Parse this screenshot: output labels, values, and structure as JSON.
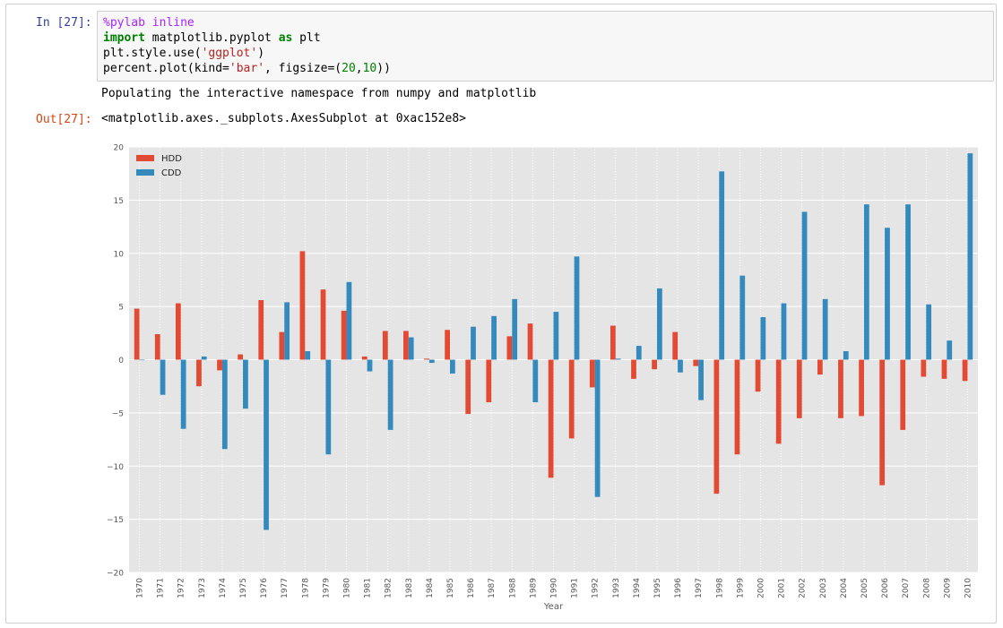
{
  "cell": {
    "in_prompt": "In [27]:",
    "out_prompt": "Out[27]:",
    "code": {
      "line1_magic": "%pylab inline",
      "line2_kw1": "import",
      "line2_mid": " matplotlib.pyplot ",
      "line2_kw2": "as",
      "line2_end": " plt",
      "line3_pre": "plt.style.use(",
      "line3_str": "'ggplot'",
      "line3_post": ")",
      "line4_pre": "percent.plot(kind=",
      "line4_str": "'bar'",
      "line4_mid": ", figsize=(",
      "line4_n1": "20",
      "line4_comma": ",",
      "line4_n2": "10",
      "line4_post": "))"
    },
    "stream_output": "Populating the interactive namespace from numpy and matplotlib",
    "output_repr": "<matplotlib.axes._subplots.AxesSubplot at 0xac152e8>"
  },
  "chart_data": {
    "type": "bar",
    "style": "ggplot",
    "xlabel": "Year",
    "ylabel": "",
    "ylim": [
      -20,
      20
    ],
    "yticks": [
      -20,
      -15,
      -10,
      -5,
      0,
      5,
      10,
      15,
      20
    ],
    "legend_position": "top-left",
    "grid": true,
    "categories": [
      "1970",
      "1971",
      "1972",
      "1973",
      "1974",
      "1975",
      "1976",
      "1977",
      "1978",
      "1979",
      "1980",
      "1981",
      "1982",
      "1983",
      "1984",
      "1985",
      "1986",
      "1987",
      "1988",
      "1989",
      "1990",
      "1991",
      "1992",
      "1993",
      "1994",
      "1995",
      "1996",
      "1997",
      "1998",
      "1999",
      "2000",
      "2001",
      "2002",
      "2003",
      "2004",
      "2005",
      "2006",
      "2007",
      "2008",
      "2009",
      "2010"
    ],
    "series": [
      {
        "name": "HDD",
        "color": "#e24a33",
        "values": [
          4.8,
          2.4,
          5.3,
          -2.5,
          -1.0,
          0.5,
          5.6,
          2.6,
          10.2,
          6.6,
          4.6,
          0.3,
          2.7,
          2.7,
          0.1,
          2.8,
          -5.1,
          -4.0,
          2.2,
          3.4,
          -11.1,
          -7.4,
          -2.6,
          3.2,
          -1.8,
          -0.9,
          2.6,
          -0.6,
          -12.6,
          -8.9,
          -3.0,
          -7.9,
          -5.5,
          -1.4,
          -5.5,
          -5.3,
          -11.8,
          -6.6,
          -1.6,
          -1.8,
          -2.0
        ]
      },
      {
        "name": "CDD",
        "color": "#348abd",
        "values": [
          0.0,
          -3.3,
          -6.5,
          0.3,
          -8.4,
          -4.6,
          -16.0,
          5.4,
          0.8,
          -8.9,
          7.3,
          -1.1,
          -6.6,
          2.1,
          -0.3,
          -1.3,
          3.1,
          4.1,
          5.7,
          -4.0,
          4.5,
          9.7,
          -12.9,
          0.1,
          1.3,
          6.7,
          -1.2,
          -3.8,
          17.7,
          7.9,
          4.0,
          5.3,
          13.9,
          5.7,
          0.8,
          14.6,
          12.4,
          14.6,
          5.2,
          1.8,
          19.4
        ]
      }
    ]
  }
}
